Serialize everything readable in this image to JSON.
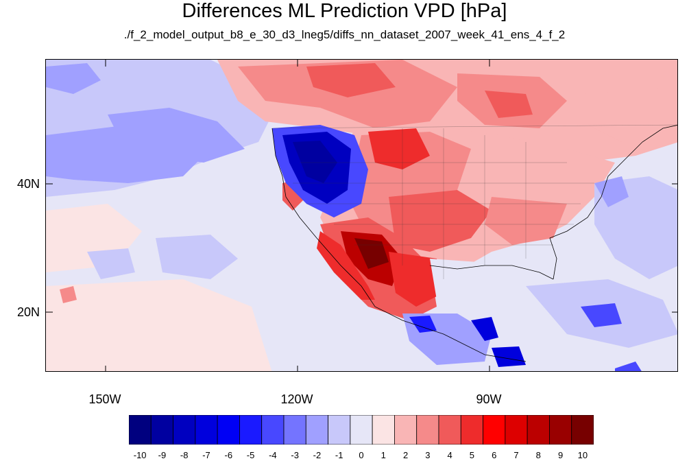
{
  "title": "Differences ML Prediction VPD [hPa]",
  "subtitle": "./f_2_model_output_b8_e_30_d3_lneg5/diffs_nn_dataset_2007_week_41_ens_4_f_2",
  "lat_labels": [
    "40N",
    "20N"
  ],
  "lon_labels": [
    "150W",
    "120W",
    "90W"
  ],
  "colorbar": {
    "labels": [
      "-10",
      "-9",
      "-8",
      "-7",
      "-6",
      "-5",
      "-4",
      "-3",
      "-2",
      "-1",
      "0",
      "1",
      "2",
      "3",
      "4",
      "5",
      "6",
      "7",
      "8",
      "9",
      "10"
    ],
    "colors": [
      "#00007f",
      "#0000a0",
      "#0000c0",
      "#0000dd",
      "#0000f5",
      "#1a1aff",
      "#4848ff",
      "#7474ff",
      "#a0a0ff",
      "#c8c8fa",
      "#e6e6f7",
      "#fbe4e4",
      "#f9b5b5",
      "#f58a8a",
      "#f05a5a",
      "#ee2c2c",
      "#ff0000",
      "#dd0000",
      "#bb0000",
      "#990000",
      "#770000"
    ]
  },
  "colors": {
    "ocean_base": "#e6e6f7",
    "blue_light": "#c8c8fa",
    "blue_mid": "#a0a0ff",
    "blue_dark": "#4848ff",
    "blue_deep": "#0000c0",
    "red_light": "#f9b5b5",
    "red_mid": "#f05a5a",
    "red_dark": "#bb0000",
    "red_deep": "#770000"
  }
}
